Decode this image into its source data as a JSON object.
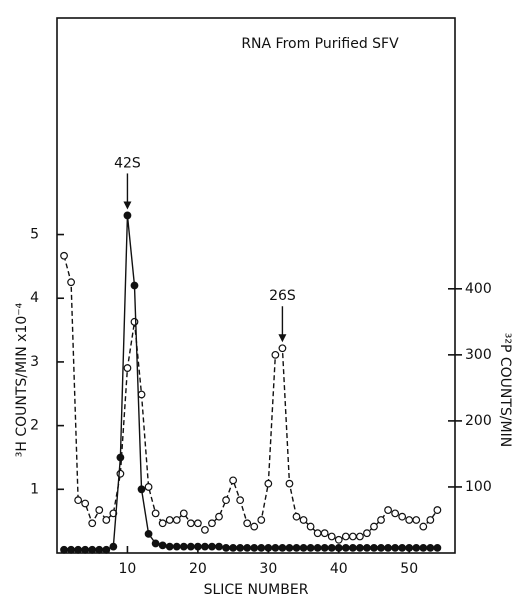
{
  "chart_data": {
    "type": "line",
    "annotation_title": "RNA From Purified SFV",
    "xlabel": "SLICE NUMBER",
    "ylabel": "³H COUNTS/MIN x10⁻⁴",
    "y2label": "³²P COUNTS/MIN",
    "peaks": [
      {
        "text": "42S",
        "x": 10
      },
      {
        "text": "26S",
        "x": 32
      }
    ],
    "x": [
      1,
      2,
      3,
      4,
      5,
      6,
      7,
      8,
      9,
      10,
      11,
      12,
      13,
      14,
      15,
      16,
      17,
      18,
      19,
      20,
      21,
      22,
      23,
      24,
      25,
      26,
      27,
      28,
      29,
      30,
      31,
      32,
      33,
      34,
      35,
      36,
      37,
      38,
      39,
      40,
      41,
      42,
      43,
      44,
      45,
      46,
      47,
      48,
      49,
      50,
      51,
      52,
      53,
      54
    ],
    "series": [
      {
        "name": "³H",
        "color": "#111111",
        "marker": "filled",
        "dashed": false,
        "values": [
          0.05,
          0.05,
          0.05,
          0.05,
          0.05,
          0.05,
          0.05,
          0.1,
          1.5,
          5.3,
          4.2,
          1.0,
          0.3,
          0.15,
          0.12,
          0.1,
          0.1,
          0.1,
          0.1,
          0.1,
          0.1,
          0.1,
          0.1,
          0.08,
          0.08,
          0.08,
          0.08,
          0.08,
          0.08,
          0.08,
          0.08,
          0.08,
          0.08,
          0.08,
          0.08,
          0.08,
          0.08,
          0.08,
          0.08,
          0.08,
          0.08,
          0.08,
          0.08,
          0.08,
          0.08,
          0.08,
          0.08,
          0.08,
          0.08,
          0.08,
          0.08,
          0.08,
          0.08,
          0.08
        ]
      },
      {
        "name": "³²P",
        "color": "#111111",
        "marker": "open",
        "dashed": true,
        "axis": "y2",
        "values": [
          450,
          410,
          80,
          75,
          45,
          65,
          50,
          60,
          120,
          280,
          350,
          240,
          100,
          60,
          45,
          50,
          50,
          60,
          45,
          45,
          35,
          45,
          55,
          80,
          110,
          80,
          45,
          40,
          50,
          105,
          300,
          310,
          105,
          55,
          50,
          40,
          30,
          30,
          25,
          20,
          25,
          25,
          25,
          30,
          40,
          50,
          65,
          60,
          55,
          50,
          50,
          40,
          50,
          65
        ]
      }
    ],
    "xlim": [
      0,
      56.5
    ],
    "xticks": [
      10,
      20,
      30,
      40,
      50
    ],
    "ylim": [
      0,
      8.4
    ],
    "yticks": [
      1,
      2,
      3,
      4,
      5
    ],
    "y2lim": [
      0,
      810
    ],
    "y2ticks": [
      100,
      200,
      300,
      400
    ]
  }
}
